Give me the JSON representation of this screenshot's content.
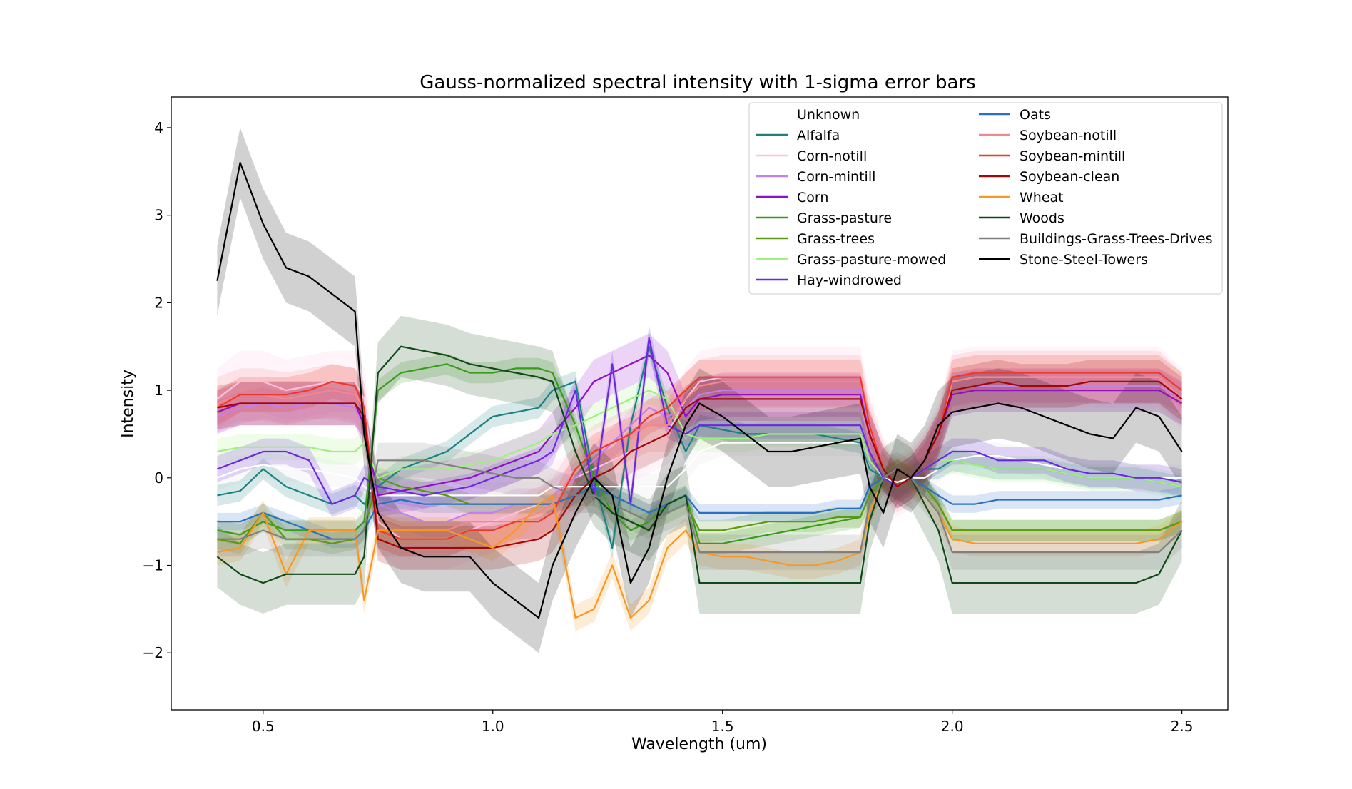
{
  "chart_data": {
    "type": "line",
    "title": "Gauss-normalized spectral intensity with 1-sigma error bars",
    "xlabel": "Wavelength (um)",
    "ylabel": "Intensity",
    "xlim": [
      0.3,
      2.6
    ],
    "ylim": [
      -2.65,
      4.35
    ],
    "xticks": [
      0.5,
      1.0,
      1.5,
      2.0,
      2.5
    ],
    "xtick_labels": [
      "0.5",
      "1.0",
      "1.5",
      "2.0",
      "2.5"
    ],
    "yticks": [
      -2,
      -1,
      0,
      1,
      2,
      3,
      4
    ],
    "ytick_labels": [
      "−2",
      "−1",
      "0",
      "1",
      "2",
      "3",
      "4"
    ],
    "grid": false,
    "legend_position": "top-right",
    "legend_columns": 2,
    "x": [
      0.4,
      0.45,
      0.5,
      0.55,
      0.6,
      0.65,
      0.7,
      0.72,
      0.75,
      0.8,
      0.85,
      0.9,
      0.95,
      1.0,
      1.05,
      1.1,
      1.13,
      1.18,
      1.22,
      1.26,
      1.3,
      1.34,
      1.38,
      1.42,
      1.45,
      1.5,
      1.55,
      1.6,
      1.65,
      1.7,
      1.75,
      1.8,
      1.82,
      1.85,
      1.88,
      1.91,
      1.94,
      1.97,
      2.0,
      2.05,
      2.1,
      2.15,
      2.2,
      2.25,
      2.3,
      2.35,
      2.4,
      2.45,
      2.5
    ],
    "series": [
      {
        "name": "Unknown",
        "color": "#ffffff",
        "sigma": 0.15,
        "values": [
          0.0,
          0.1,
          0.15,
          0.1,
          0.1,
          0.05,
          0.0,
          -0.1,
          -0.2,
          -0.2,
          -0.2,
          -0.2,
          -0.2,
          -0.2,
          -0.2,
          -0.2,
          -0.1,
          -0.1,
          -0.1,
          -0.1,
          -0.1,
          -0.1,
          -0.1,
          0.1,
          0.3,
          0.4,
          0.4,
          0.4,
          0.4,
          0.4,
          0.4,
          0.4,
          0.1,
          0.0,
          -0.05,
          0.0,
          0.0,
          0.1,
          0.2,
          0.25,
          0.25,
          0.2,
          0.15,
          0.1,
          0.05,
          0.05,
          0.0,
          0.0,
          0.0
        ]
      },
      {
        "name": "Alfalfa",
        "color": "#1a8080",
        "sigma": 0.12,
        "values": [
          -0.2,
          -0.15,
          0.1,
          -0.1,
          -0.2,
          -0.3,
          -0.2,
          -0.3,
          -0.1,
          0.1,
          0.2,
          0.3,
          0.5,
          0.7,
          0.75,
          0.8,
          1.0,
          1.1,
          0.0,
          -0.8,
          0.6,
          1.5,
          0.8,
          0.3,
          0.6,
          0.55,
          0.5,
          0.5,
          0.5,
          0.5,
          0.45,
          0.4,
          0.1,
          0.0,
          -0.1,
          0.0,
          0.1,
          0.1,
          0.2,
          0.15,
          0.1,
          0.1,
          0.1,
          0.05,
          0.0,
          0.0,
          0.0,
          -0.05,
          -0.1
        ]
      },
      {
        "name": "Corn-notill",
        "color": "#ffc0e0",
        "sigma": 0.35,
        "values": [
          0.9,
          1.1,
          1.1,
          1.0,
          1.05,
          1.1,
          1.1,
          0.9,
          -0.5,
          -0.7,
          -0.7,
          -0.7,
          -0.6,
          -0.5,
          -0.4,
          -0.3,
          -0.2,
          0.0,
          0.1,
          0.2,
          0.3,
          0.4,
          0.5,
          0.9,
          1.1,
          1.15,
          1.15,
          1.15,
          1.15,
          1.15,
          1.15,
          1.15,
          0.6,
          0.1,
          -0.1,
          0.0,
          0.2,
          0.5,
          1.1,
          1.15,
          1.15,
          1.15,
          1.15,
          1.15,
          1.15,
          1.15,
          1.15,
          1.15,
          0.9
        ]
      },
      {
        "name": "Corn-mintill",
        "color": "#c080f0",
        "sigma": 0.18,
        "values": [
          0.7,
          0.8,
          0.85,
          0.8,
          0.85,
          0.85,
          0.8,
          0.6,
          -0.3,
          -0.4,
          -0.5,
          -0.5,
          -0.4,
          -0.4,
          -0.3,
          -0.3,
          -0.2,
          0.0,
          0.2,
          0.4,
          0.6,
          0.8,
          0.7,
          0.8,
          0.95,
          1.0,
          1.0,
          1.0,
          1.0,
          1.0,
          1.0,
          1.0,
          0.5,
          0.1,
          -0.1,
          0.0,
          0.2,
          0.5,
          1.0,
          1.05,
          1.05,
          1.05,
          1.05,
          1.05,
          1.05,
          1.05,
          1.05,
          1.05,
          0.9
        ]
      },
      {
        "name": "Corn",
        "color": "#9010c8",
        "sigma": 0.25,
        "values": [
          0.75,
          0.85,
          0.85,
          0.85,
          0.85,
          0.85,
          0.85,
          0.6,
          -0.2,
          -0.15,
          -0.1,
          -0.05,
          0.0,
          0.1,
          0.2,
          0.3,
          0.5,
          0.8,
          1.1,
          1.2,
          1.3,
          1.4,
          1.2,
          0.7,
          0.9,
          0.95,
          0.95,
          0.95,
          0.95,
          0.95,
          0.95,
          0.95,
          0.5,
          0.1,
          -0.1,
          0.0,
          0.2,
          0.5,
          0.95,
          1.0,
          1.0,
          1.0,
          1.0,
          1.0,
          1.0,
          1.0,
          1.0,
          1.0,
          0.85
        ]
      },
      {
        "name": "Grass-pasture",
        "color": "#3a9a1a",
        "sigma": 0.12,
        "values": [
          -0.6,
          -0.65,
          -0.5,
          -0.6,
          -0.6,
          -0.6,
          -0.6,
          -0.5,
          1.0,
          1.2,
          1.25,
          1.3,
          1.2,
          1.2,
          1.25,
          1.25,
          1.2,
          0.6,
          0.0,
          -0.4,
          -0.6,
          -0.5,
          -0.3,
          -0.2,
          -0.75,
          -0.75,
          -0.7,
          -0.65,
          -0.6,
          -0.55,
          -0.5,
          -0.45,
          -0.2,
          0.0,
          0.1,
          0.0,
          -0.1,
          -0.3,
          -0.6,
          -0.6,
          -0.6,
          -0.6,
          -0.6,
          -0.6,
          -0.6,
          -0.6,
          -0.6,
          -0.6,
          -0.5
        ]
      },
      {
        "name": "Grass-trees",
        "color": "#5a9a10",
        "sigma": 0.12,
        "values": [
          -0.7,
          -0.75,
          -0.4,
          -0.7,
          -0.7,
          -0.75,
          -0.7,
          -0.6,
          0.0,
          -0.1,
          -0.15,
          -0.2,
          -0.3,
          -0.3,
          -0.3,
          -0.3,
          -0.3,
          -0.2,
          -0.2,
          -0.3,
          -0.4,
          -0.5,
          -0.4,
          -0.3,
          -0.6,
          -0.6,
          -0.55,
          -0.5,
          -0.5,
          -0.5,
          -0.45,
          -0.45,
          -0.2,
          0.0,
          0.1,
          0.0,
          -0.1,
          -0.3,
          -0.6,
          -0.6,
          -0.6,
          -0.6,
          -0.6,
          -0.6,
          -0.6,
          -0.6,
          -0.6,
          -0.6,
          -0.5
        ]
      },
      {
        "name": "Grass-pasture-mowed",
        "color": "#a0f080",
        "sigma": 0.15,
        "values": [
          0.3,
          0.35,
          0.35,
          0.35,
          0.35,
          0.3,
          0.3,
          0.4,
          0.0,
          0.1,
          0.1,
          0.1,
          0.15,
          0.2,
          0.3,
          0.4,
          0.5,
          0.6,
          0.7,
          0.8,
          0.9,
          1.0,
          0.9,
          0.5,
          0.45,
          0.45,
          0.45,
          0.5,
          0.5,
          0.5,
          0.5,
          0.5,
          0.2,
          0.0,
          -0.1,
          0.0,
          0.1,
          0.2,
          0.2,
          0.15,
          0.1,
          0.1,
          0.1,
          0.05,
          0.0,
          0.0,
          0.0,
          -0.05,
          -0.1
        ]
      },
      {
        "name": "Hay-windrowed",
        "color": "#6a28e0",
        "sigma": 0.15,
        "values": [
          0.1,
          0.2,
          0.3,
          0.3,
          0.2,
          -0.3,
          -0.2,
          0.0,
          -0.1,
          -0.15,
          -0.2,
          -0.15,
          -0.1,
          0.0,
          0.1,
          0.2,
          0.3,
          1.0,
          -0.2,
          1.3,
          -0.3,
          1.6,
          0.6,
          0.5,
          0.6,
          0.6,
          0.6,
          0.6,
          0.6,
          0.6,
          0.6,
          0.6,
          0.3,
          0.0,
          -0.1,
          0.0,
          0.1,
          0.2,
          0.3,
          0.3,
          0.2,
          0.2,
          0.2,
          0.1,
          0.05,
          0.05,
          0.0,
          0.0,
          -0.05
        ]
      },
      {
        "name": "Oats",
        "color": "#2a70c0",
        "sigma": 0.1,
        "values": [
          -0.5,
          -0.5,
          -0.4,
          -0.5,
          -0.6,
          -0.7,
          -0.7,
          -0.6,
          -0.3,
          -0.25,
          -0.3,
          -0.3,
          -0.3,
          -0.3,
          -0.3,
          -0.3,
          -0.3,
          -0.2,
          -0.1,
          -0.2,
          -0.3,
          -0.4,
          -0.3,
          -0.2,
          -0.4,
          -0.4,
          -0.4,
          -0.4,
          -0.4,
          -0.4,
          -0.35,
          -0.35,
          -0.1,
          0.0,
          0.1,
          0.0,
          -0.1,
          -0.2,
          -0.3,
          -0.3,
          -0.25,
          -0.25,
          -0.25,
          -0.25,
          -0.25,
          -0.25,
          -0.25,
          -0.25,
          -0.2
        ]
      },
      {
        "name": "Soybean-notill",
        "color": "#f08890",
        "sigma": 0.3,
        "values": [
          0.85,
          0.95,
          0.95,
          0.9,
          0.95,
          1.0,
          0.95,
          0.8,
          -0.6,
          -0.6,
          -0.6,
          -0.6,
          -0.5,
          -0.5,
          -0.5,
          -0.4,
          -0.3,
          0.1,
          0.3,
          0.4,
          0.5,
          0.6,
          0.6,
          0.9,
          1.05,
          1.1,
          1.1,
          1.1,
          1.1,
          1.1,
          1.1,
          1.1,
          0.6,
          0.1,
          -0.1,
          0.0,
          0.2,
          0.5,
          1.1,
          1.15,
          1.15,
          1.15,
          1.15,
          1.15,
          1.15,
          1.15,
          1.15,
          1.15,
          0.9
        ]
      },
      {
        "name": "Soybean-mintill",
        "color": "#f03828",
        "sigma": 0.2,
        "values": [
          0.8,
          0.95,
          0.95,
          0.95,
          1.0,
          1.1,
          1.05,
          0.8,
          -0.6,
          -0.7,
          -0.7,
          -0.7,
          -0.6,
          -0.6,
          -0.5,
          -0.5,
          -0.4,
          0.1,
          0.3,
          0.4,
          0.5,
          0.7,
          0.8,
          1.0,
          1.15,
          1.15,
          1.15,
          1.15,
          1.15,
          1.15,
          1.15,
          1.15,
          0.6,
          0.1,
          -0.1,
          0.0,
          0.2,
          0.5,
          1.15,
          1.2,
          1.2,
          1.2,
          1.2,
          1.2,
          1.2,
          1.2,
          1.2,
          1.2,
          1.0
        ]
      },
      {
        "name": "Soybean-clean",
        "color": "#a00808",
        "sigma": 0.25,
        "values": [
          0.8,
          0.85,
          0.85,
          0.85,
          0.85,
          0.85,
          0.85,
          0.7,
          -0.7,
          -0.8,
          -0.8,
          -0.8,
          -0.8,
          -0.8,
          -0.75,
          -0.7,
          -0.6,
          -0.2,
          0.0,
          0.1,
          0.3,
          0.4,
          0.5,
          0.8,
          0.9,
          0.9,
          0.9,
          0.9,
          0.9,
          0.9,
          0.9,
          0.9,
          0.5,
          0.1,
          -0.1,
          0.0,
          0.2,
          0.5,
          1.0,
          1.05,
          1.1,
          1.05,
          1.05,
          1.05,
          1.1,
          1.1,
          1.1,
          1.1,
          0.9
        ]
      },
      {
        "name": "Wheat",
        "color": "#f89820",
        "sigma": 0.15,
        "values": [
          -0.85,
          -0.8,
          -0.4,
          -1.1,
          -0.6,
          -0.6,
          -0.6,
          -1.4,
          -0.6,
          -0.6,
          -0.6,
          -0.6,
          -0.7,
          -0.8,
          -0.6,
          -0.3,
          -0.2,
          -1.6,
          -1.5,
          -1.0,
          -1.6,
          -1.4,
          -0.8,
          -0.6,
          -0.85,
          -0.9,
          -0.9,
          -0.95,
          -1.0,
          -1.0,
          -0.95,
          -0.85,
          -0.4,
          0.0,
          0.1,
          0.0,
          -0.2,
          -0.4,
          -0.7,
          -0.75,
          -0.75,
          -0.75,
          -0.75,
          -0.75,
          -0.75,
          -0.75,
          -0.75,
          -0.7,
          -0.5
        ]
      },
      {
        "name": "Woods",
        "color": "#104818",
        "sigma": 0.35,
        "values": [
          -0.9,
          -1.1,
          -1.2,
          -1.1,
          -1.1,
          -1.1,
          -1.1,
          -0.9,
          1.2,
          1.5,
          1.45,
          1.4,
          1.3,
          1.25,
          1.2,
          1.15,
          1.1,
          0.3,
          -0.2,
          -0.4,
          -0.5,
          -0.6,
          -0.3,
          -0.2,
          -1.2,
          -1.2,
          -1.2,
          -1.2,
          -1.2,
          -1.2,
          -1.2,
          -1.2,
          -0.5,
          0.0,
          0.1,
          0.0,
          -0.3,
          -0.6,
          -1.2,
          -1.2,
          -1.2,
          -1.2,
          -1.2,
          -1.2,
          -1.2,
          -1.2,
          -1.2,
          -1.1,
          -0.6
        ]
      },
      {
        "name": "Buildings-Grass-Trees-Drives",
        "color": "#808080",
        "sigma": 0.2,
        "values": [
          -0.7,
          -0.7,
          -0.6,
          -0.7,
          -0.7,
          -0.7,
          -0.7,
          -0.6,
          0.2,
          0.2,
          0.2,
          0.15,
          0.1,
          0.05,
          0.0,
          0.0,
          -0.1,
          -0.2,
          -0.2,
          -0.3,
          -0.4,
          -0.5,
          -0.4,
          -0.3,
          -0.85,
          -0.85,
          -0.85,
          -0.85,
          -0.85,
          -0.85,
          -0.85,
          -0.85,
          -0.3,
          0.0,
          0.1,
          0.0,
          -0.2,
          -0.4,
          -0.85,
          -0.85,
          -0.85,
          -0.85,
          -0.85,
          -0.85,
          -0.85,
          -0.85,
          -0.85,
          -0.85,
          -0.6
        ]
      },
      {
        "name": "Stone-Steel-Towers",
        "color": "#000000",
        "sigma": 0.4,
        "values": [
          2.25,
          3.6,
          2.9,
          2.4,
          2.3,
          2.1,
          1.9,
          0.5,
          -0.4,
          -0.8,
          -0.9,
          -0.9,
          -0.9,
          -1.2,
          -1.4,
          -1.6,
          -1.0,
          -0.4,
          0.0,
          -0.2,
          -1.2,
          -0.8,
          0.0,
          0.6,
          0.85,
          0.7,
          0.5,
          0.3,
          0.3,
          0.35,
          0.4,
          0.45,
          -0.1,
          -0.4,
          0.1,
          0.0,
          0.2,
          0.6,
          0.75,
          0.8,
          0.85,
          0.8,
          0.7,
          0.6,
          0.5,
          0.45,
          0.8,
          0.7,
          0.3
        ]
      }
    ]
  }
}
